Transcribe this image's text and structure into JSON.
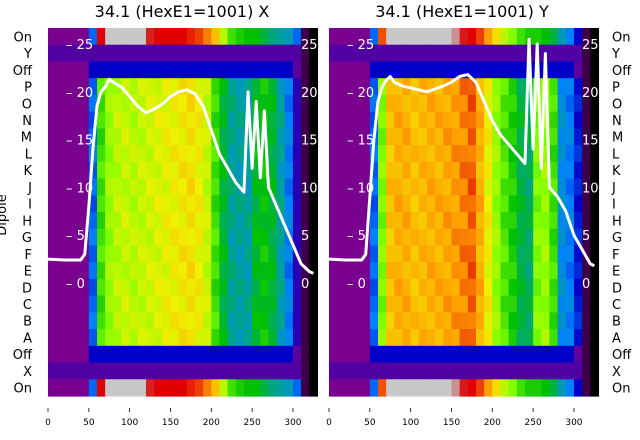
{
  "chart_data": [
    {
      "type": "heatmap",
      "title": "34.1 (HexE1=1001) X",
      "ylabel": "Dipole",
      "row_labels": [
        "On",
        "Y",
        "Off",
        "P",
        "O",
        "N",
        "M",
        "L",
        "K",
        "J",
        "I",
        "H",
        "G",
        "F",
        "E",
        "D",
        "C",
        "B",
        "A",
        "Off",
        "X",
        "On"
      ],
      "xticks": [
        0,
        50,
        100,
        150,
        200,
        250,
        300
      ],
      "xlim": [
        0,
        327
      ],
      "secondary_yticks": [
        0,
        5,
        10,
        15,
        20,
        25
      ],
      "secondary_ylim": [
        -11.7,
        26.5
      ],
      "column_x": [
        0,
        10,
        20,
        30,
        40,
        50,
        60,
        70,
        80,
        90,
        100,
        110,
        120,
        130,
        140,
        150,
        160,
        170,
        180,
        190,
        200,
        210,
        220,
        230,
        240,
        250,
        260,
        270,
        280,
        290,
        300,
        310,
        320
      ],
      "dipole_profile": [
        0,
        0,
        0,
        0,
        0,
        0.2,
        0.45,
        0.52,
        0.55,
        0.56,
        0.55,
        0.56,
        0.57,
        0.58,
        0.59,
        0.6,
        0.61,
        0.62,
        0.6,
        0.56,
        0.45,
        0.37,
        0.31,
        0.3,
        0.3,
        0.38,
        0.4,
        0.37,
        0.3,
        0.22,
        0.08,
        -0.5,
        -1
      ],
      "on_profile": [
        0,
        0,
        0,
        0,
        0,
        0.2,
        0.8,
        1,
        1,
        1,
        1,
        1,
        0.85,
        0.8,
        0.8,
        0.8,
        0.8,
        0.78,
        0.76,
        0.72,
        0.66,
        0.55,
        0.45,
        0.42,
        0.4,
        0.4,
        0.36,
        0.32,
        0.3,
        0.28,
        0.2,
        -0.5,
        -1
      ],
      "off_level": 0.12,
      "xy_level": 0.04,
      "trace": {
        "x": [
          0,
          20,
          40,
          45,
          50,
          55,
          60,
          65,
          70,
          75,
          80,
          90,
          100,
          110,
          120,
          130,
          140,
          150,
          160,
          170,
          180,
          190,
          200,
          210,
          220,
          230,
          240,
          245,
          250,
          255,
          260,
          265,
          270,
          275,
          280,
          285,
          290,
          300,
          310,
          320,
          325
        ],
        "y": [
          2.5,
          2.4,
          2.4,
          3,
          8,
          14,
          18.5,
          20,
          20.5,
          21.3,
          21,
          20.5,
          19.5,
          18.5,
          17.8,
          18.2,
          18.7,
          19.5,
          20,
          20.2,
          19.8,
          18.5,
          16,
          13.5,
          12,
          10.5,
          9.5,
          20,
          12,
          19,
          11,
          18,
          10,
          9,
          8,
          7,
          6,
          4,
          2,
          1.2,
          1
        ]
      }
    },
    {
      "type": "heatmap",
      "title": "34.1 (HexE1=1001) Y",
      "row_labels": [
        "On",
        "Y",
        "Off",
        "P",
        "O",
        "N",
        "M",
        "L",
        "K",
        "J",
        "I",
        "H",
        "G",
        "F",
        "E",
        "D",
        "C",
        "B",
        "A",
        "Off",
        "X",
        "On"
      ],
      "xticks": [
        0,
        50,
        100,
        150,
        200,
        250,
        300
      ],
      "xlim": [
        0,
        327
      ],
      "secondary_yticks": [
        0,
        5,
        10,
        15,
        20,
        25
      ],
      "secondary_ylim": [
        -11.7,
        26.5
      ],
      "column_x": [
        0,
        10,
        20,
        30,
        40,
        50,
        60,
        70,
        80,
        90,
        100,
        110,
        120,
        130,
        140,
        150,
        160,
        170,
        180,
        190,
        200,
        210,
        220,
        230,
        240,
        250,
        260,
        270,
        280,
        290,
        300,
        310,
        320
      ],
      "dipole_profile": [
        0,
        0,
        0,
        0,
        0,
        0.2,
        0.5,
        0.66,
        0.68,
        0.68,
        0.66,
        0.67,
        0.68,
        0.68,
        0.69,
        0.7,
        0.72,
        0.74,
        0.68,
        0.6,
        0.52,
        0.46,
        0.42,
        0.36,
        0.34,
        0.5,
        0.52,
        0.45,
        0.25,
        0.22,
        0.14,
        -0.5,
        -1
      ],
      "on_profile": [
        0,
        0,
        0,
        0,
        0,
        0.2,
        0.75,
        1,
        1,
        1,
        1,
        1,
        1,
        1,
        1,
        0.96,
        0.84,
        0.8,
        0.76,
        0.7,
        0.62,
        0.55,
        0.5,
        0.45,
        0.42,
        0.42,
        0.4,
        0.36,
        0.28,
        0.22,
        0.12,
        -0.5,
        -1
      ],
      "off_level": 0.12,
      "xy_level": 0.04,
      "trace": {
        "x": [
          0,
          20,
          40,
          45,
          50,
          55,
          60,
          65,
          70,
          75,
          80,
          90,
          100,
          110,
          120,
          130,
          140,
          150,
          160,
          170,
          180,
          190,
          200,
          210,
          220,
          230,
          240,
          245,
          250,
          255,
          260,
          265,
          270,
          275,
          280,
          290,
          300,
          310,
          320,
          325
        ],
        "y": [
          2.5,
          2.4,
          2.4,
          3,
          9,
          15,
          19,
          20.5,
          21.2,
          21.6,
          21,
          20.6,
          20.4,
          20.2,
          20,
          20.3,
          20.6,
          21,
          21.6,
          21.8,
          21,
          19,
          17,
          15.5,
          14.5,
          13.5,
          12.5,
          25.5,
          14,
          25,
          12,
          24,
          10,
          9.5,
          9,
          7.5,
          5,
          3.5,
          2,
          1.8
        ]
      }
    }
  ]
}
